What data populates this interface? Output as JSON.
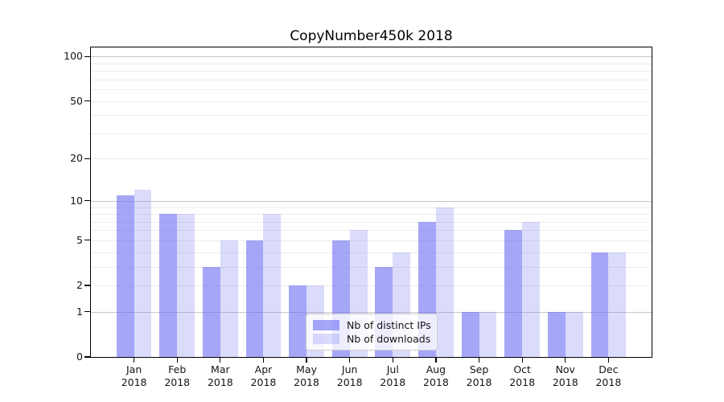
{
  "chart_data": {
    "type": "bar",
    "title": "CopyNumber450k 2018",
    "categories": [
      "Jan",
      "Feb",
      "Mar",
      "Apr",
      "May",
      "Jun",
      "Jul",
      "Aug",
      "Sep",
      "Oct",
      "Nov",
      "Dec"
    ],
    "category_year": "2018",
    "series": [
      {
        "name": "Nb of distinct IPs",
        "color": "rgba(112,112,242,0.62)",
        "swatch_hex": "#a6a6f7",
        "values": [
          11,
          8,
          3,
          5,
          2,
          5,
          3,
          7,
          1,
          6,
          1,
          4
        ]
      },
      {
        "name": "Nb of downloads",
        "color": "rgba(112,112,242,0.25)",
        "swatch_hex": "#dbdbfb",
        "values": [
          12,
          8,
          5,
          8,
          2,
          6,
          4,
          9,
          1,
          7,
          1,
          4
        ]
      }
    ],
    "xlabel": "",
    "ylabel": "",
    "y_axis": {
      "scale": "log1p",
      "ticks": [
        0,
        1,
        2,
        5,
        10,
        20,
        50,
        100
      ],
      "ylim": [
        0,
        115
      ],
      "major_gridlines": [
        1,
        10,
        100
      ],
      "minor_gridlines": [
        2,
        3,
        4,
        5,
        6,
        7,
        8,
        9,
        20,
        30,
        40,
        50,
        60,
        70,
        80,
        90
      ]
    },
    "grid": true,
    "legend_position": "lower center"
  },
  "colors": {
    "major_grid": "#c6c6c6",
    "minor_grid": "#ededed",
    "spine": "#000000",
    "text": "#151515",
    "legend_border": "#cccccc"
  }
}
